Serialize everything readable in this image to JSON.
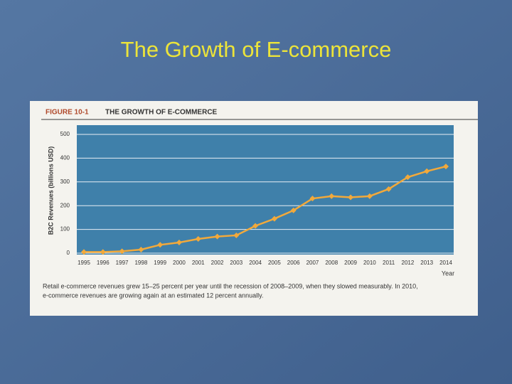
{
  "slide_title": "The Growth of E-commerce",
  "chart_data": {
    "type": "line",
    "figure_label": "FIGURE 10-1",
    "title": "THE GROWTH OF E-COMMERCE",
    "y_label": "B2C Revenues (billions USD)",
    "x_label": "Year",
    "caption": [
      "Retail e-commerce revenues grew 15–25 percent per year until the recession of 2008–2009, when they slowed measurably. In 2010,",
      "e-commerce revenues are growing again at an estimated 12 percent annually."
    ],
    "categories": [
      "1995",
      "1996",
      "1997",
      "1998",
      "1999",
      "2000",
      "2001",
      "2002",
      "2003",
      "2004",
      "2005",
      "2006",
      "2007",
      "2008",
      "2009",
      "2010",
      "2011",
      "2012",
      "2013",
      "2014"
    ],
    "series": [
      {
        "name": "B2C Revenues",
        "color": "#f2a93b",
        "values": [
          5,
          5,
          8,
          15,
          35,
          45,
          60,
          70,
          75,
          115,
          145,
          180,
          230,
          240,
          235,
          240,
          270,
          320,
          345,
          365
        ]
      }
    ],
    "ylim": [
      0,
      500
    ],
    "yticks": [
      0,
      100,
      200,
      300,
      400,
      500
    ],
    "grid": true
  }
}
